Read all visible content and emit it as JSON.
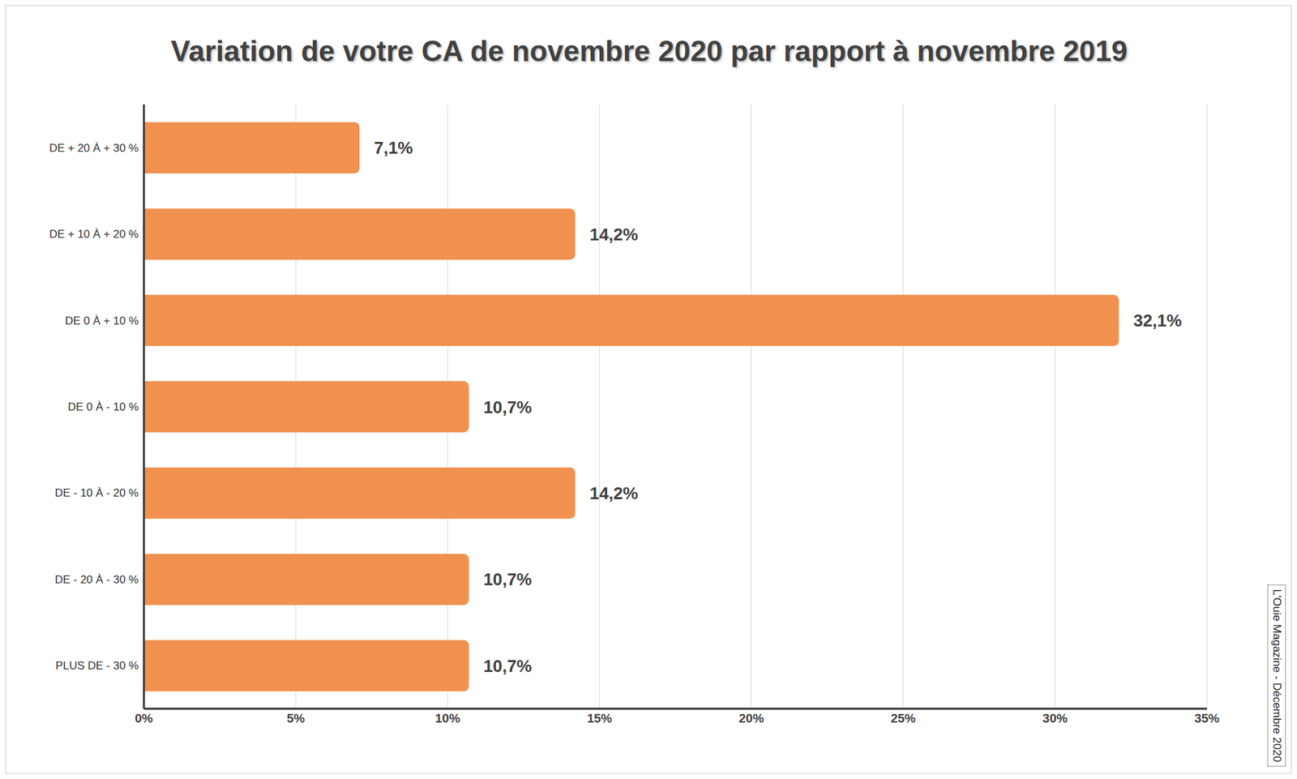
{
  "chart_data": {
    "type": "bar",
    "title": "Variation de votre CA de novembre 2020 par rapport à novembre 2019",
    "categories": [
      "DE + 20 À + 30 %",
      "DE + 10 À + 20 %",
      "DE 0 À + 10 %",
      "DE 0 À - 10 %",
      "DE - 10 À - 20 %",
      "DE - 20 À - 30 %",
      "PLUS DE - 30 %"
    ],
    "values": [
      7.1,
      14.2,
      32.1,
      10.7,
      14.2,
      10.7,
      10.7
    ],
    "value_labels": [
      "7,1%",
      "14,2%",
      "32,1%",
      "10,7%",
      "14,2%",
      "10,7%",
      "10,7%"
    ],
    "color": "#f0914f",
    "orientation": "horizontal",
    "data_labels": true,
    "grid": true,
    "xlim": [
      0,
      35
    ],
    "xticks": [
      {
        "value": 0,
        "label": "0%"
      },
      {
        "value": 5,
        "label": "5%"
      },
      {
        "value": 10,
        "label": "10%"
      },
      {
        "value": 15,
        "label": "15%"
      },
      {
        "value": 20,
        "label": "20%"
      },
      {
        "value": 25,
        "label": "25%"
      },
      {
        "value": 30,
        "label": "30%"
      },
      {
        "value": 35,
        "label": "35%"
      }
    ],
    "annotations": [
      "L'Ouie Magazine - Décembre 2020"
    ]
  }
}
